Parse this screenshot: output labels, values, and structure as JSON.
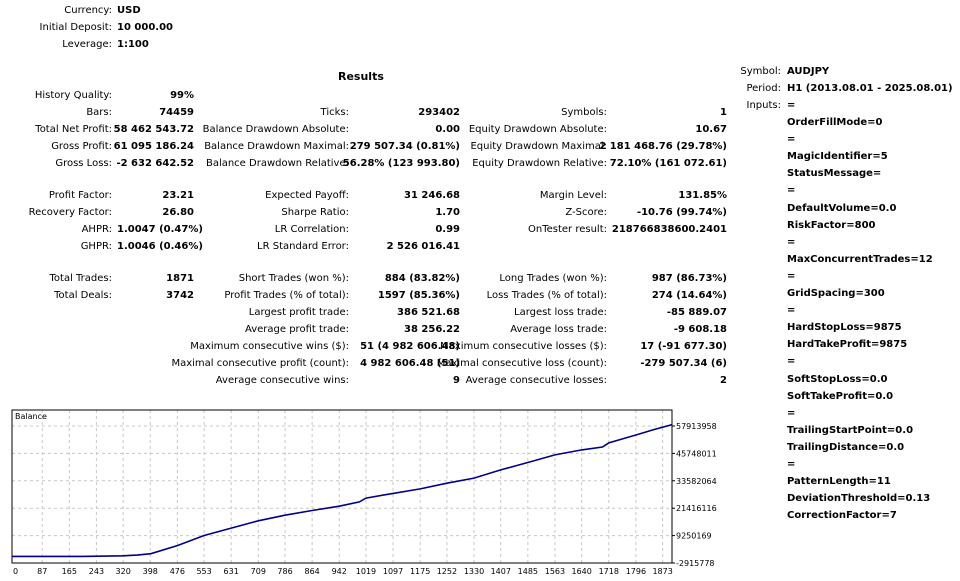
{
  "header": {
    "currency_label": "Currency:",
    "currency": "USD",
    "deposit_label": "Initial Deposit:",
    "deposit": "10 000.00",
    "leverage_label": "Leverage:",
    "leverage": "1:100"
  },
  "results_title": "Results",
  "col1": [
    {
      "label": "History Quality:",
      "value": "99%"
    },
    {
      "label": "Bars:",
      "value": "74459"
    },
    {
      "label": "Total Net Profit:",
      "value": "58 462 543.72"
    },
    {
      "label": "Gross Profit:",
      "value": "61 095 186.24"
    },
    {
      "label": "Gross Loss:",
      "value": "-2 632 642.52"
    },
    {
      "label": "Profit Factor:",
      "value": "23.21"
    },
    {
      "label": "Recovery Factor:",
      "value": "26.80"
    },
    {
      "label": "AHPR:",
      "value": "1.0047 (0.47%)"
    },
    {
      "label": "GHPR:",
      "value": "1.0046 (0.46%)"
    },
    {
      "label": "Total Trades:",
      "value": "1871"
    },
    {
      "label": "Total Deals:",
      "value": "3742"
    }
  ],
  "col2": [
    {
      "label": "Ticks:",
      "value": "293402"
    },
    {
      "label": "Balance Drawdown Absolute:",
      "value": "0.00"
    },
    {
      "label": "Balance Drawdown Maximal:",
      "value": "279 507.34 (0.81%)"
    },
    {
      "label": "Balance Drawdown Relative:",
      "value": "56.28% (123 993.80)"
    },
    {
      "label": "Expected Payoff:",
      "value": "31 246.68"
    },
    {
      "label": "Sharpe Ratio:",
      "value": "1.70"
    },
    {
      "label": "LR Correlation:",
      "value": "0.99"
    },
    {
      "label": "LR Standard Error:",
      "value": "2 526 016.41"
    },
    {
      "label": "Short Trades (won %):",
      "value": "884 (83.82%)"
    },
    {
      "label": "Profit Trades (% of total):",
      "value": "1597 (85.36%)"
    },
    {
      "label": "Largest profit trade:",
      "value": "386 521.68"
    },
    {
      "label": "Average profit trade:",
      "value": "38 256.22"
    },
    {
      "label": "Maximum consecutive wins ($):",
      "value": "51 (4 982 606.48)"
    },
    {
      "label": "Maximal consecutive profit (count):",
      "value": "4 982 606.48 (51)"
    },
    {
      "label": "Average consecutive wins:",
      "value": "9"
    }
  ],
  "col3": [
    {
      "label": "Symbols:",
      "value": "1"
    },
    {
      "label": "Equity Drawdown Absolute:",
      "value": "10.67"
    },
    {
      "label": "Equity Drawdown Maximal:",
      "value": "2 181 468.76 (29.78%)"
    },
    {
      "label": "Equity Drawdown Relative:",
      "value": "72.10% (161 072.61)"
    },
    {
      "label": "Margin Level:",
      "value": "131.85%"
    },
    {
      "label": "Z-Score:",
      "value": "-10.76 (99.74%)"
    },
    {
      "label": "OnTester result:",
      "value": "218766838600.2401"
    },
    {
      "label": "Long Trades (won %):",
      "value": "987 (86.73%)"
    },
    {
      "label": "Loss Trades (% of total):",
      "value": "274 (14.64%)"
    },
    {
      "label": "Largest loss trade:",
      "value": "-85 889.07"
    },
    {
      "label": "Average loss trade:",
      "value": "-9 608.18"
    },
    {
      "label": "Maximum consecutive losses ($):",
      "value": "17 (-91 677.30)"
    },
    {
      "label": "Maximal consecutive loss (count):",
      "value": "-279 507.34 (6)"
    },
    {
      "label": "Average consecutive losses:",
      "value": "2"
    }
  ],
  "settings": {
    "symbol_label": "Symbol:",
    "symbol": "AUDJPY",
    "period_label": "Period:",
    "period": "H1 (2013.08.01 - 2025.08.01)",
    "inputs_label": "Inputs:",
    "inputs_first": "=",
    "inputs": [
      "OrderFillMode=0",
      "=",
      "MagicIdentifier=5",
      "StatusMessage=",
      "=",
      "DefaultVolume=0.0",
      "RiskFactor=800",
      "=",
      "MaxConcurrentTrades=12",
      "=",
      "GridSpacing=300",
      "=",
      "HardStopLoss=9875",
      "HardTakeProfit=9875",
      "=",
      "SoftStopLoss=0.0",
      "SoftTakeProfit=0.0",
      "=",
      "TrailingStartPoint=0.0",
      "TrailingDistance=0.0",
      "=",
      "PatternLength=11",
      "DeviationThreshold=0.13",
      "CorrectionFactor=7"
    ]
  },
  "chart_data": {
    "type": "line",
    "title": "Balance",
    "xlabel": "",
    "ylabel": "",
    "x_ticks": [
      0,
      87,
      165,
      243,
      320,
      398,
      476,
      553,
      631,
      709,
      786,
      864,
      942,
      1019,
      1097,
      1175,
      1252,
      1330,
      1407,
      1485,
      1563,
      1640,
      1718,
      1796,
      1873
    ],
    "y_ticks": [
      -2915778,
      9250169,
      21416116,
      33582064,
      45748011,
      57913958
    ],
    "ylim": [
      -2915778,
      57913958
    ],
    "xlim": [
      0,
      1900
    ],
    "grid": true,
    "line_color": "#00008b",
    "series": [
      {
        "name": "Balance",
        "x": [
          0,
          200,
          320,
          360,
          400,
          476,
          553,
          631,
          709,
          786,
          864,
          942,
          1000,
          1019,
          1097,
          1175,
          1252,
          1330,
          1407,
          1485,
          1563,
          1640,
          1700,
          1718,
          1796,
          1850,
          1900
        ],
        "y": [
          10000,
          10000,
          300000,
          600000,
          1200000,
          4800000,
          9300000,
          12600000,
          15800000,
          18300000,
          20400000,
          22300000,
          24200000,
          25900000,
          28000000,
          30000000,
          32500000,
          34800000,
          38400000,
          41700000,
          45100000,
          47300000,
          48600000,
          50400000,
          53900000,
          56400000,
          58472543
        ]
      }
    ]
  }
}
